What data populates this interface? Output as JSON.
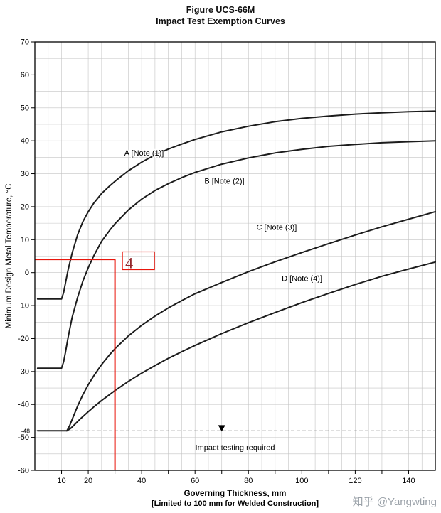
{
  "header": {
    "line1": "Figure UCS-66M",
    "line2": "Impact Test Exemption Curves"
  },
  "footer": {
    "watermark": "知乎 @Yangwting"
  },
  "chart_data": {
    "type": "line",
    "title": "Figure UCS-66M",
    "subtitle": "Impact Test Exemption Curves",
    "xlabel": "Governing Thickness, mm",
    "xlabel_note": "[Limited to 100 mm for Welded Construction]",
    "ylabel": "Minimum Design Metal Temperature, °C",
    "xlim": [
      0,
      150
    ],
    "ylim": [
      -60,
      70
    ],
    "grid": true,
    "grid_step_x": 5,
    "grid_step_y": 5,
    "x_ticks_labeled": [
      10,
      20,
      40,
      60,
      80,
      100,
      120,
      140
    ],
    "y_ticks_labeled": [
      70,
      60,
      50,
      40,
      30,
      20,
      10,
      0,
      -10,
      -20,
      -30,
      -40,
      -50,
      -60
    ],
    "special_y_tick": {
      "value": -48,
      "label": "-48"
    },
    "series": [
      {
        "name": "A",
        "label": "A [Note (1)]",
        "label_at": [
          33.5,
          35.5
        ],
        "points": [
          [
            1,
            -8
          ],
          [
            10,
            -8
          ],
          [
            10.8,
            -6
          ],
          [
            11.5,
            -3
          ],
          [
            12.5,
            1
          ],
          [
            14,
            6
          ],
          [
            16,
            11.5
          ],
          [
            18,
            15.5
          ],
          [
            20,
            18.5
          ],
          [
            22,
            21
          ],
          [
            25,
            24
          ],
          [
            28,
            26.3
          ],
          [
            30,
            27.7
          ],
          [
            35,
            30.9
          ],
          [
            40,
            33.5
          ],
          [
            45,
            35.7
          ],
          [
            50,
            37.5
          ],
          [
            55,
            39
          ],
          [
            60,
            40.4
          ],
          [
            70,
            42.7
          ],
          [
            80,
            44.4
          ],
          [
            90,
            45.8
          ],
          [
            100,
            46.8
          ],
          [
            110,
            47.5
          ],
          [
            120,
            48.1
          ],
          [
            130,
            48.5
          ],
          [
            140,
            48.8
          ],
          [
            150,
            49
          ]
        ]
      },
      {
        "name": "B",
        "label": "B [Note (2)]",
        "label_at": [
          63.5,
          27
        ],
        "points": [
          [
            1,
            -29
          ],
          [
            10,
            -29
          ],
          [
            10.8,
            -27
          ],
          [
            11.5,
            -24
          ],
          [
            12.5,
            -19.5
          ],
          [
            14,
            -13.5
          ],
          [
            16,
            -7.5
          ],
          [
            18,
            -2.5
          ],
          [
            20,
            1.5
          ],
          [
            22,
            5
          ],
          [
            25,
            9.5
          ],
          [
            28,
            12.8
          ],
          [
            30,
            14.8
          ],
          [
            35,
            19
          ],
          [
            40,
            22.3
          ],
          [
            45,
            24.9
          ],
          [
            50,
            27
          ],
          [
            55,
            28.8
          ],
          [
            60,
            30.4
          ],
          [
            70,
            32.9
          ],
          [
            80,
            34.8
          ],
          [
            90,
            36.3
          ],
          [
            100,
            37.4
          ],
          [
            110,
            38.3
          ],
          [
            120,
            38.9
          ],
          [
            130,
            39.4
          ],
          [
            140,
            39.7
          ],
          [
            150,
            40
          ]
        ]
      },
      {
        "name": "C",
        "label": "C [Note (3)]",
        "label_at": [
          83,
          13
        ],
        "points": [
          [
            1,
            -48
          ],
          [
            12,
            -48
          ],
          [
            13,
            -46.5
          ],
          [
            14,
            -44.5
          ],
          [
            16,
            -40.5
          ],
          [
            18,
            -37
          ],
          [
            20,
            -34
          ],
          [
            22,
            -31.4
          ],
          [
            25,
            -27.9
          ],
          [
            28,
            -24.9
          ],
          [
            30,
            -23.1
          ],
          [
            35,
            -19.2
          ],
          [
            40,
            -16
          ],
          [
            45,
            -13.2
          ],
          [
            50,
            -10.7
          ],
          [
            55,
            -8.5
          ],
          [
            60,
            -6.4
          ],
          [
            70,
            -3
          ],
          [
            80,
            0.3
          ],
          [
            90,
            3.3
          ],
          [
            100,
            6.1
          ],
          [
            110,
            8.8
          ],
          [
            120,
            11.4
          ],
          [
            130,
            13.9
          ],
          [
            140,
            16.2
          ],
          [
            150,
            18.5
          ]
        ]
      },
      {
        "name": "D",
        "label": "D [Note (4)]",
        "label_at": [
          92.5,
          -2.5
        ],
        "points": [
          [
            12,
            -48
          ],
          [
            13.5,
            -47.2
          ],
          [
            15,
            -46
          ],
          [
            17,
            -44.4
          ],
          [
            20,
            -42.2
          ],
          [
            22,
            -40.8
          ],
          [
            25,
            -38.8
          ],
          [
            28,
            -37
          ],
          [
            30,
            -35.8
          ],
          [
            35,
            -33
          ],
          [
            40,
            -30.5
          ],
          [
            45,
            -28.2
          ],
          [
            50,
            -26
          ],
          [
            55,
            -24
          ],
          [
            60,
            -22.1
          ],
          [
            70,
            -18.5
          ],
          [
            80,
            -15.2
          ],
          [
            90,
            -12.1
          ],
          [
            100,
            -9.1
          ],
          [
            110,
            -6.3
          ],
          [
            120,
            -3.6
          ],
          [
            130,
            -1.1
          ],
          [
            140,
            1.1
          ],
          [
            150,
            3.2
          ]
        ]
      }
    ],
    "reference_line": {
      "y": -48,
      "style": "dashed",
      "arrow_x": 70,
      "text": "Impact testing required",
      "text_x": 75
    },
    "annotation": {
      "x": 30,
      "y": 4,
      "label": "4",
      "box": {
        "x1": 32.8,
        "x2": 44.8,
        "y1": 0.9,
        "y2": 6.3
      }
    },
    "legend_position": "on-curve-labels",
    "colors": {
      "curve": "#1c1c1c",
      "grid": "#c3c3c3",
      "axis": "#000000",
      "annotation": "#e8160c",
      "annotation_text": "#93282c"
    }
  }
}
